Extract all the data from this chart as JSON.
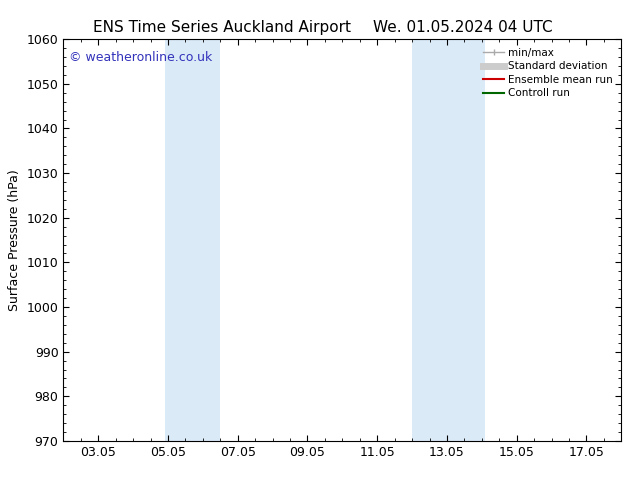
{
  "title_left": "ENS Time Series Auckland Airport",
  "title_right": "We. 01.05.2024 04 UTC",
  "ylabel": "Surface Pressure (hPa)",
  "ylim": [
    970,
    1060
  ],
  "yticks": [
    970,
    980,
    990,
    1000,
    1010,
    1020,
    1030,
    1040,
    1050,
    1060
  ],
  "xlim": [
    1,
    17
  ],
  "xtick_labels": [
    "03.05",
    "05.05",
    "07.05",
    "09.05",
    "11.05",
    "13.05",
    "15.05",
    "17.05"
  ],
  "xtick_positions": [
    2,
    4,
    6,
    8,
    10,
    12,
    14,
    16
  ],
  "shaded_bands": [
    {
      "x_start": 3.9,
      "x_end": 5.5,
      "color": "#daeaf7"
    },
    {
      "x_start": 11.0,
      "x_end": 13.1,
      "color": "#daeaf7"
    }
  ],
  "watermark": "© weatheronline.co.uk",
  "watermark_color": "#3333bb",
  "background_color": "#ffffff",
  "axes_bg_color": "#ffffff",
  "legend_items": [
    {
      "label": "min/max",
      "color": "#aaaaaa",
      "lw": 1.0
    },
    {
      "label": "Standard deviation",
      "color": "#cccccc",
      "lw": 5
    },
    {
      "label": "Ensemble mean run",
      "color": "#cc0000",
      "lw": 1.5
    },
    {
      "label": "Controll run",
      "color": "#006600",
      "lw": 1.5
    }
  ],
  "title_fontsize": 11,
  "tick_fontsize": 9,
  "label_fontsize": 9,
  "watermark_fontsize": 9
}
